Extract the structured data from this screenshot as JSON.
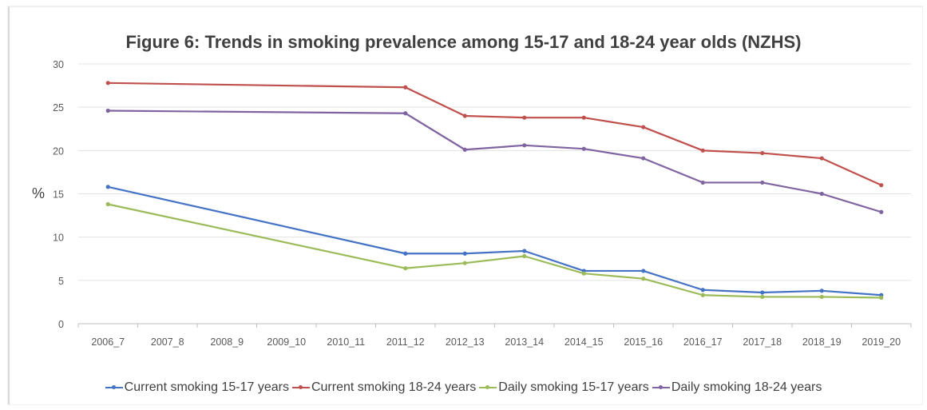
{
  "chart_data": {
    "type": "line",
    "title": "Figure 6: Trends in smoking prevalence among 15-17 and 18-24 year olds (NZHS)",
    "ylabel": "%",
    "xlabel": "",
    "ylim": [
      0,
      30
    ],
    "yticks": [
      0,
      5,
      10,
      15,
      20,
      25,
      30
    ],
    "grid": true,
    "legend_position": "bottom",
    "categories": [
      "2006_7",
      "2007_8",
      "2008_9",
      "2009_10",
      "2010_11",
      "2011_12",
      "2012_13",
      "2013_14",
      "2014_15",
      "2015_16",
      "2016_17",
      "2017_18",
      "2018_19",
      "2019_20"
    ],
    "series": [
      {
        "name": "Current smoking 15-17 years",
        "color": "#4472c4",
        "values": [
          15.8,
          null,
          null,
          null,
          null,
          8.1,
          8.1,
          8.4,
          6.1,
          6.1,
          3.9,
          3.6,
          3.8,
          3.3
        ]
      },
      {
        "name": "Current smoking 18-24 years",
        "color": "#c0504d",
        "values": [
          27.8,
          null,
          null,
          null,
          null,
          27.3,
          24.0,
          23.8,
          23.8,
          22.7,
          20.0,
          19.7,
          19.1,
          16.0
        ]
      },
      {
        "name": "Daily smoking 15-17 years",
        "color": "#9bbb59",
        "values": [
          13.8,
          null,
          null,
          null,
          null,
          6.4,
          7.0,
          7.8,
          5.8,
          5.2,
          3.3,
          3.1,
          3.1,
          3.0
        ]
      },
      {
        "name": "Daily smoking 18-24 years",
        "color": "#8064a2",
        "values": [
          24.6,
          null,
          null,
          null,
          null,
          24.3,
          20.1,
          20.6,
          20.2,
          19.1,
          16.3,
          16.3,
          15.0,
          12.9
        ]
      }
    ]
  }
}
